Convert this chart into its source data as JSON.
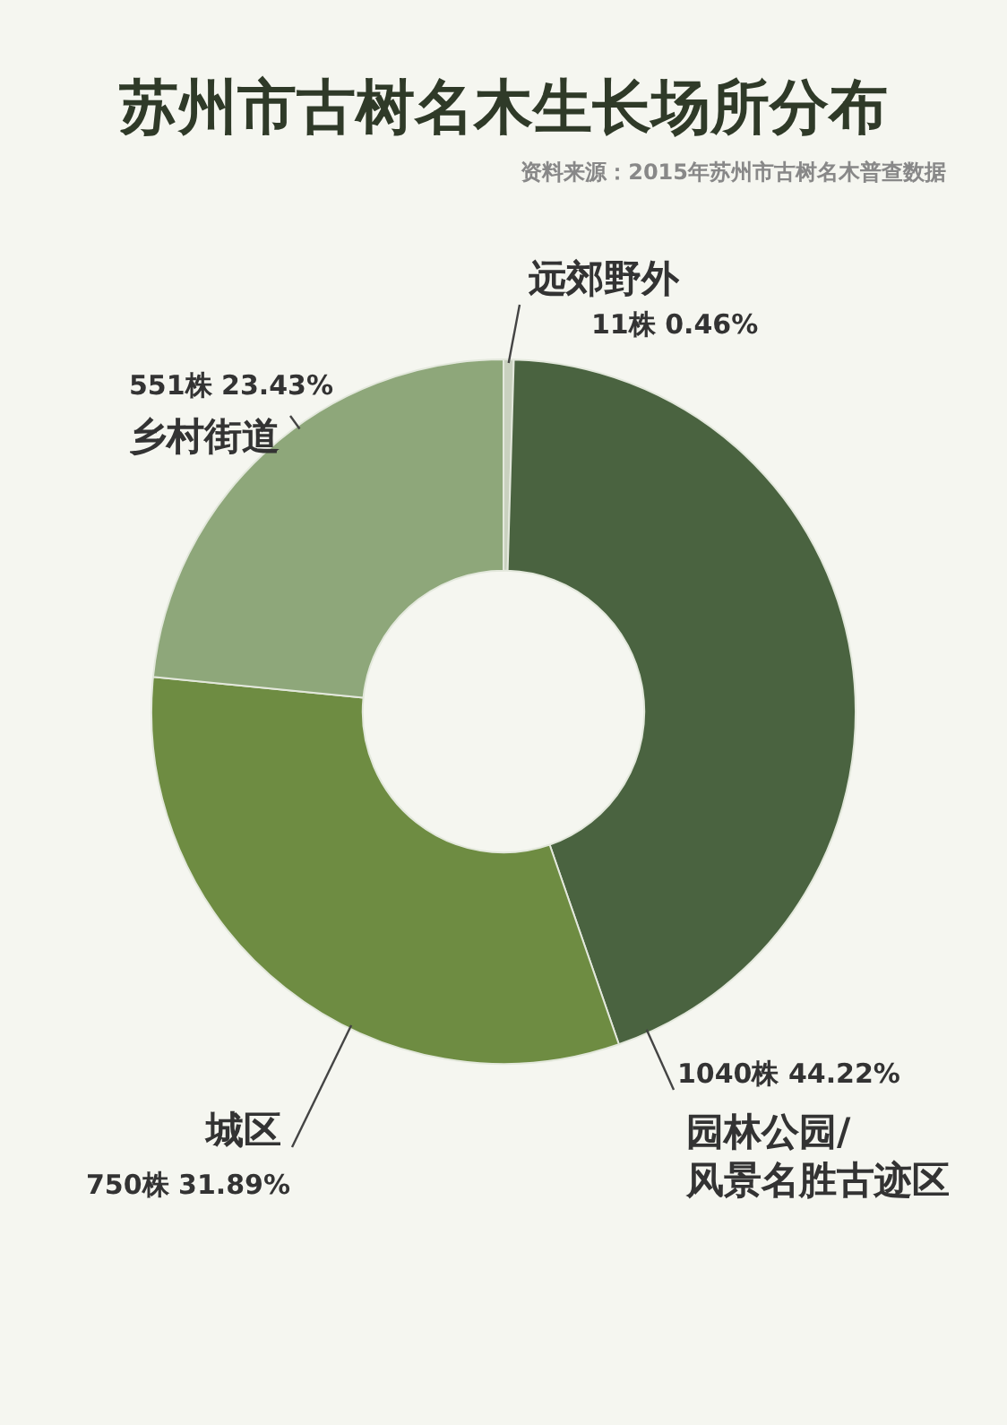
{
  "chart_data": {
    "type": "donut",
    "title": "苏州市古树名木生长场所分布",
    "annotations": [
      "资料来源：2015年苏州市古树名木普查数据"
    ],
    "categories": [
      "远郊野外",
      "园林公园/风景名胜古迹区",
      "城区",
      "乡村街道"
    ],
    "values": [
      11,
      1040,
      750,
      551
    ],
    "value_labels": [
      "11株 0.46%",
      "1040株 44.22%",
      "750株 31.89%",
      "551株 23.43%"
    ],
    "colors": [
      "#c9d1bf",
      "#4a6340",
      "#6e8c42",
      "#8ea77a"
    ],
    "legend": false
  }
}
